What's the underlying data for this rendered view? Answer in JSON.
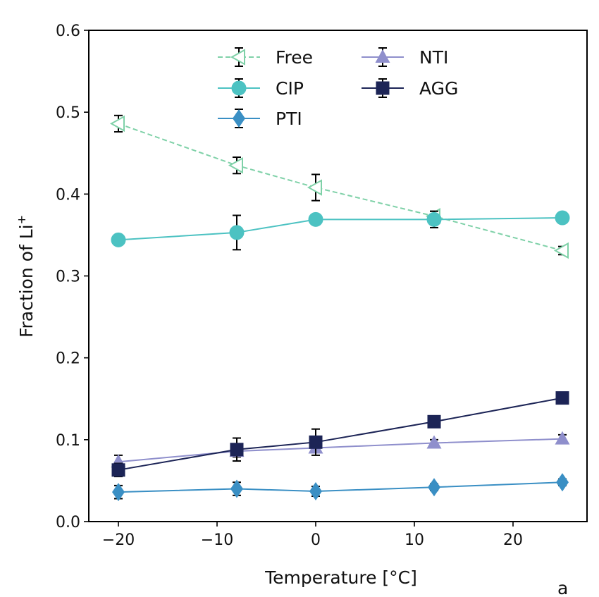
{
  "chart_data": {
    "type": "line",
    "xlabel": "Temperature [°C]",
    "ylabel_main": "Fraction of Li",
    "ylabel_sup": "+",
    "xlim": [
      -23,
      27.5
    ],
    "ylim": [
      0.0,
      0.6
    ],
    "xticks": [
      -20,
      -10,
      0,
      10,
      20
    ],
    "xtick_labels": [
      "−20",
      "−10",
      "0",
      "10",
      "20"
    ],
    "yticks": [
      0.0,
      0.1,
      0.2,
      0.3,
      0.4,
      0.5,
      0.6
    ],
    "ytick_labels": [
      "0.0",
      "0.1",
      "0.2",
      "0.3",
      "0.4",
      "0.5",
      "0.6"
    ],
    "grid": false,
    "legend_position": "top-center",
    "panel_label": "a",
    "x": [
      -20,
      -8,
      0,
      12,
      25
    ],
    "series": [
      {
        "name": "Free",
        "values": [
          0.486,
          0.435,
          0.408,
          0.373,
          0.331
        ],
        "errors": [
          0.01,
          0.01,
          0.016,
          0.006,
          0.005
        ],
        "color": "#7fd1a8",
        "marker": "triangle-left-open",
        "linestyle": "dashed"
      },
      {
        "name": "CIP",
        "values": [
          0.344,
          0.353,
          0.369,
          0.369,
          0.371
        ],
        "errors": [
          0.006,
          0.021,
          0.006,
          0.01,
          0.004
        ],
        "color": "#4cc2c2",
        "marker": "circle",
        "linestyle": "solid"
      },
      {
        "name": "PTI",
        "values": [
          0.036,
          0.04,
          0.037,
          0.042,
          0.048
        ],
        "errors": [
          0.008,
          0.008,
          0.006,
          0.004,
          0.004
        ],
        "color": "#3a8fc4",
        "marker": "diamond",
        "linestyle": "solid"
      },
      {
        "name": "NTI",
        "values": [
          0.073,
          0.086,
          0.09,
          0.096,
          0.101
        ],
        "errors": [
          0.008,
          0.007,
          0.004,
          0.004,
          0.005
        ],
        "color": "#8f8fcc",
        "marker": "triangle-up",
        "linestyle": "solid"
      },
      {
        "name": "AGG",
        "values": [
          0.063,
          0.088,
          0.097,
          0.122,
          0.151
        ],
        "errors": [
          0.008,
          0.014,
          0.016,
          0.004,
          0.004
        ],
        "color": "#1c2456",
        "marker": "square",
        "linestyle": "solid"
      }
    ]
  }
}
